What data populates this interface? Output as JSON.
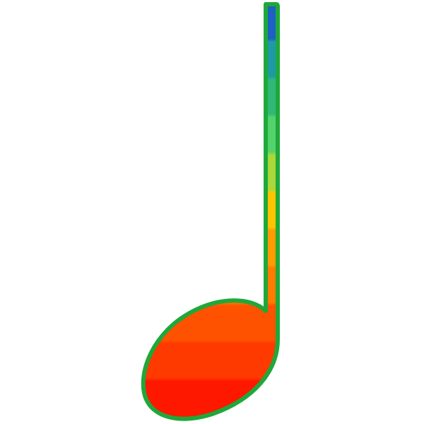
{
  "figure": {
    "subject": "quarter-note-icon",
    "background": "#ffffff",
    "outline_color": "#1fa83a",
    "gradient_stops": [
      "#1e5fc4",
      "#1d9aa6",
      "#2fb877",
      "#52d36b",
      "#a8d83a",
      "#ffc400",
      "#ff9a00",
      "#ff7a00",
      "#ff5200",
      "#ff3a00",
      "#ff1800"
    ]
  }
}
